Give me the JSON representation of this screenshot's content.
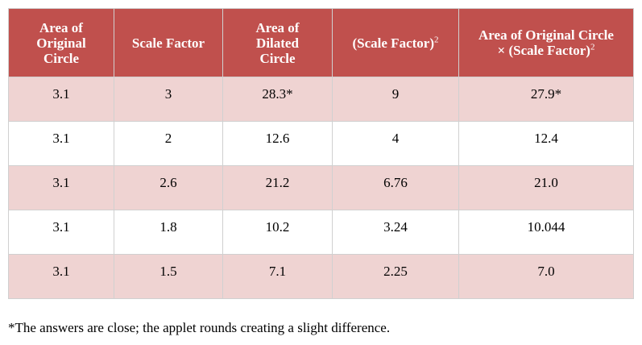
{
  "table": {
    "headers": {
      "area_original": "Area of Original Circle",
      "scale_factor": "Scale Factor",
      "area_dilated": "Area of Dilated Circle",
      "scale_factor_squared": "(Scale Factor)",
      "scale_factor_squared_exp": "2",
      "product_line1": "Area of Original Circle",
      "product_line2": "× (Scale Factor)",
      "product_exp": "2"
    },
    "rows": [
      [
        "3.1",
        "3",
        "28.3*",
        "9",
        "27.9*"
      ],
      [
        "3.1",
        "2",
        "12.6",
        "4",
        "12.4"
      ],
      [
        "3.1",
        "2.6",
        "21.2",
        "6.76",
        "21.0"
      ],
      [
        "3.1",
        "1.8",
        "10.2",
        "3.24",
        "10.044"
      ],
      [
        "3.1",
        "1.5",
        "7.1",
        "2.25",
        "7.0"
      ]
    ]
  },
  "colors": {
    "header_background": "#c0504d",
    "header_text": "#ffffff",
    "shaded_row": "#efd3d2",
    "plain_row": "#ffffff",
    "border": "#d0d0d0"
  },
  "footnote": "*The answers are close; the applet rounds creating a slight difference."
}
